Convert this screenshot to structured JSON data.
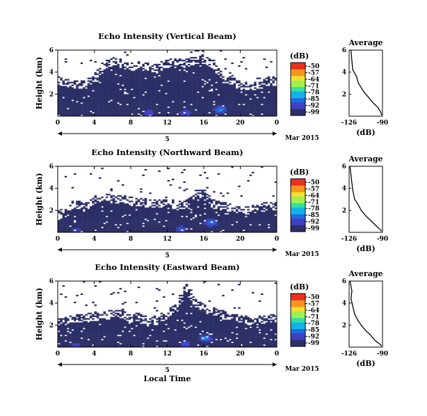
{
  "figure": {
    "xlabel": "Local Time",
    "date_label": "Mar 2015",
    "day_label": "5"
  },
  "colorbar": {
    "title": "(dB)",
    "ticks": [
      "-50",
      "-57",
      "-64",
      "-71",
      "-78",
      "-85",
      "-92",
      "-99"
    ],
    "colors": [
      "#2c2f66",
      "#3f3fbf",
      "#1e6ce0",
      "#12b4e8",
      "#33e0a0",
      "#a0f050",
      "#f0e030",
      "#f59520",
      "#e83020"
    ]
  },
  "chart_data": [
    {
      "type": "heatmap",
      "title": "Echo Intensity (Vertical Beam)",
      "ylabel": "Height (km)",
      "xlim": [
        0,
        24
      ],
      "ylim": [
        0,
        6
      ],
      "xticks": [
        "0",
        "4",
        "8",
        "12",
        "16",
        "20",
        "0"
      ],
      "yticks": [
        "2",
        "4",
        "6"
      ],
      "clim": [
        -99,
        -50
      ],
      "background_db": -97,
      "signal_top_km": [
        3.2,
        3.0,
        2.9,
        2.9,
        3.4,
        4.6,
        5.0,
        4.8,
        4.4,
        4.6,
        4.4,
        4.4,
        4.8,
        4.8,
        4.8,
        5.0,
        5.2,
        4.6,
        3.6,
        3.2,
        2.8,
        2.6,
        2.8,
        3.2,
        3.2
      ],
      "bright_spots": [
        {
          "hour": 17.8,
          "km": 0.6,
          "db": -79
        },
        {
          "hour": 14,
          "km": 0.3,
          "db": -85
        },
        {
          "hour": 10,
          "km": 0.3,
          "db": -88
        }
      ],
      "profile": {
        "title": "Average",
        "xlabel": "(dB)",
        "xticks": [
          "-126",
          "-90"
        ],
        "yticks": [
          "2",
          "4",
          "6"
        ],
        "x": [
          -124,
          -123,
          -122,
          -118,
          -116,
          -113,
          -110,
          -105,
          -100,
          -95,
          -92,
          -91
        ],
        "y": [
          6.0,
          5.0,
          4.2,
          3.6,
          3.0,
          2.6,
          2.2,
          1.7,
          1.2,
          0.8,
          0.4,
          0.1
        ]
      }
    },
    {
      "type": "heatmap",
      "title": "Echo Intensity (Northward Beam)",
      "ylabel": "Height (km)",
      "xlim": [
        0,
        24
      ],
      "ylim": [
        0,
        6
      ],
      "xticks": [
        "0",
        "4",
        "8",
        "12",
        "16",
        "20",
        "0"
      ],
      "yticks": [
        "2",
        "4",
        "6"
      ],
      "clim": [
        -99,
        -50
      ],
      "background_db": -97,
      "signal_top_km": [
        1.6,
        1.8,
        2.6,
        2.2,
        3.0,
        3.2,
        3.0,
        3.0,
        2.8,
        2.8,
        2.6,
        2.6,
        2.6,
        2.4,
        2.6,
        3.4,
        3.6,
        2.6,
        2.4,
        2.2,
        2.0,
        2.0,
        2.2,
        2.4,
        2.4
      ],
      "bright_spots": [
        {
          "hour": 16.8,
          "km": 0.9,
          "db": -80
        },
        {
          "hour": 13.5,
          "km": 0.3,
          "db": -86
        },
        {
          "hour": 2,
          "km": 0.2,
          "db": -90
        }
      ],
      "profile": {
        "title": "Average",
        "xlabel": "(dB)",
        "xticks": [
          "-126",
          "-90"
        ],
        "yticks": [
          "2",
          "4",
          "6"
        ],
        "x": [
          -125,
          -124,
          -123,
          -122,
          -120,
          -116,
          -113,
          -108,
          -103,
          -97,
          -93,
          -91
        ],
        "y": [
          6.0,
          5.2,
          4.5,
          3.8,
          3.0,
          2.5,
          2.0,
          1.5,
          1.1,
          0.6,
          0.3,
          0.1
        ]
      }
    },
    {
      "type": "heatmap",
      "title": "Echo Intensity (Eastward Beam)",
      "ylabel": "Height (km)",
      "xlim": [
        0,
        24
      ],
      "ylim": [
        0,
        6
      ],
      "xticks": [
        "0",
        "4",
        "8",
        "12",
        "16",
        "20",
        "0"
      ],
      "yticks": [
        "2",
        "4",
        "6"
      ],
      "clim": [
        -99,
        -50
      ],
      "background_db": -97,
      "signal_top_km": [
        2.4,
        2.4,
        2.6,
        2.6,
        2.8,
        2.8,
        3.0,
        3.0,
        2.6,
        2.6,
        2.4,
        2.4,
        3.0,
        3.6,
        5.6,
        4.0,
        3.6,
        3.2,
        3.0,
        2.6,
        2.6,
        2.4,
        2.4,
        2.6,
        2.6
      ],
      "bright_spots": [
        {
          "hour": 16.2,
          "km": 0.8,
          "db": -80
        },
        {
          "hour": 14,
          "km": 0.3,
          "db": -86
        },
        {
          "hour": 2,
          "km": 0.2,
          "db": -90
        }
      ],
      "profile": {
        "title": "Average",
        "xlabel": "(dB)",
        "xticks": [
          "-126",
          "-90"
        ],
        "yticks": [
          "2",
          "4",
          "6"
        ],
        "x": [
          -125,
          -123,
          -124,
          -122,
          -120,
          -117,
          -113,
          -108,
          -103,
          -98,
          -93,
          -91
        ],
        "y": [
          6.0,
          5.1,
          4.4,
          3.7,
          3.0,
          2.5,
          2.0,
          1.5,
          1.1,
          0.6,
          0.3,
          0.1
        ]
      }
    }
  ]
}
